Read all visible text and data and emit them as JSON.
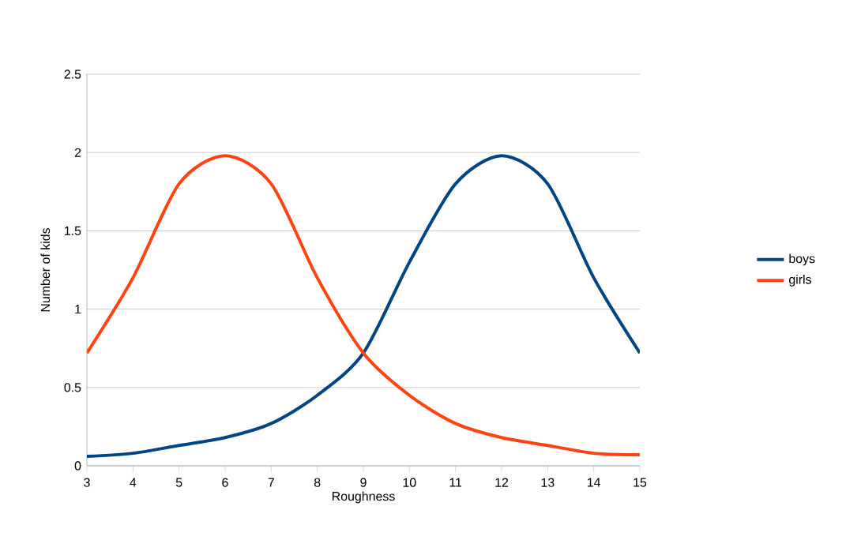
{
  "chart_data": {
    "type": "line",
    "xlabel": "Roughness",
    "ylabel": "Number of kids",
    "x": [
      3,
      4,
      5,
      6,
      7,
      8,
      9,
      10,
      11,
      12,
      13,
      14,
      15
    ],
    "series": [
      {
        "name": "boys",
        "color": "#004586",
        "values": [
          0.06,
          0.08,
          0.13,
          0.18,
          0.27,
          0.45,
          0.72,
          1.3,
          1.8,
          1.98,
          1.8,
          1.2,
          0.72
        ]
      },
      {
        "name": "girls",
        "color": "#ff420e",
        "values": [
          0.72,
          1.2,
          1.8,
          1.98,
          1.8,
          1.2,
          0.72,
          0.45,
          0.27,
          0.18,
          0.13,
          0.08,
          0.07
        ]
      }
    ],
    "xlim": [
      3,
      15
    ],
    "xticks": [
      3,
      4,
      5,
      6,
      7,
      8,
      9,
      10,
      11,
      12,
      13,
      14,
      15
    ],
    "ylim": [
      0,
      2.5
    ],
    "yticks": [
      0,
      0.5,
      1,
      1.5,
      2,
      2.5
    ],
    "grid": "y",
    "legend": "right",
    "marker": "none",
    "line_style": "solid"
  }
}
